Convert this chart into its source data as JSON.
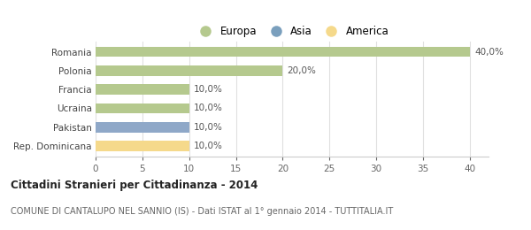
{
  "categories": [
    "Rep. Dominicana",
    "Pakistan",
    "Ucraina",
    "Francia",
    "Polonia",
    "Romania"
  ],
  "values": [
    10.0,
    10.0,
    10.0,
    10.0,
    20.0,
    40.0
  ],
  "colors": [
    "#f5d98b",
    "#8fa8c8",
    "#b5c98e",
    "#b5c98e",
    "#b5c98e",
    "#b5c98e"
  ],
  "bar_labels": [
    "10,0%",
    "10,0%",
    "10,0%",
    "10,0%",
    "20,0%",
    "40,0%"
  ],
  "legend_labels": [
    "Europa",
    "Asia",
    "America"
  ],
  "legend_colors": [
    "#b5c98e",
    "#7a9fbd",
    "#f5d98b"
  ],
  "title": "Cittadini Stranieri per Cittadinanza - 2014",
  "subtitle": "COMUNE DI CANTALUPO NEL SANNIO (IS) - Dati ISTAT al 1° gennaio 2014 - TUTTITALIA.IT",
  "xlim": [
    0,
    42
  ],
  "xticks": [
    0,
    5,
    10,
    15,
    20,
    25,
    30,
    35,
    40
  ],
  "bg_color": "#ffffff",
  "grid_color": "#e0e0e0"
}
